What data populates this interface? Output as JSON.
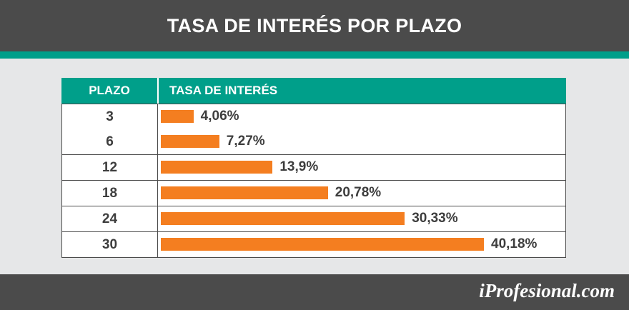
{
  "title": "TASA DE INTERÉS POR PLAZO",
  "logo": "iProfesional.com",
  "colors": {
    "header_bg": "#4b4b4b",
    "accent": "#009f8a",
    "bar": "#f47e20",
    "background": "#e6e7e8"
  },
  "chart_data": {
    "type": "bar",
    "orientation": "horizontal",
    "title": "TASA DE INTERÉS POR PLAZO",
    "column_headers": [
      "PLAZO",
      "TASA DE INTERÉS"
    ],
    "categories": [
      "3",
      "6",
      "12",
      "18",
      "24",
      "30"
    ],
    "values": [
      4.06,
      7.27,
      13.9,
      20.78,
      30.33,
      40.18
    ],
    "value_labels": [
      "4,06%",
      "7,27%",
      "13,9%",
      "20,78%",
      "30,33%",
      "40,18%"
    ],
    "grid": false
  }
}
